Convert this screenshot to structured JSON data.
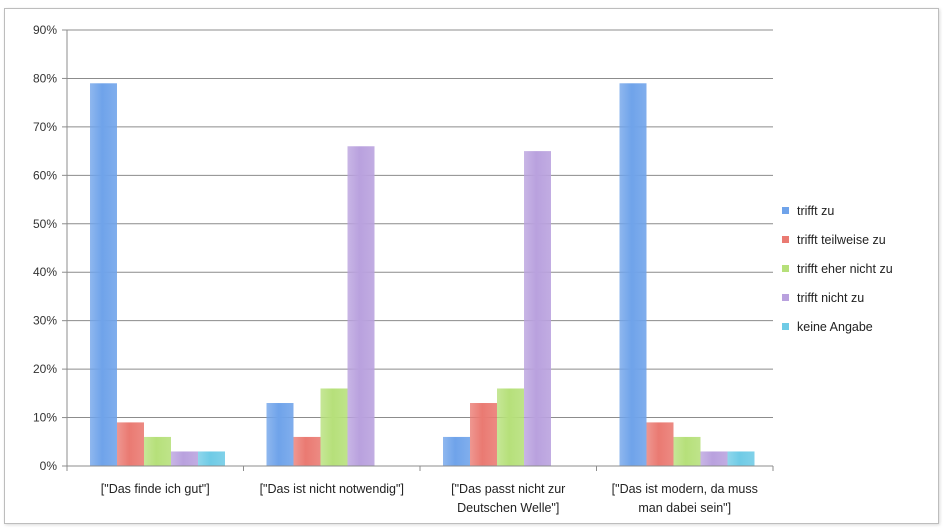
{
  "chart_data": {
    "type": "bar",
    "categories": [
      [
        "[\"Das finde ich gut\"]"
      ],
      [
        "[\"Das ist nicht notwendig\"]"
      ],
      [
        "[\"Das passt nicht zur",
        "Deutschen Welle\"]"
      ],
      [
        "[\"Das ist modern, da muss",
        "man dabei sein\"]"
      ]
    ],
    "series": [
      {
        "name": "trifft zu",
        "color": "#6fa3ea",
        "values": [
          79,
          13,
          6,
          79
        ]
      },
      {
        "name": "trifft teilweise zu",
        "color": "#ea7a72",
        "values": [
          9,
          6,
          13,
          9
        ]
      },
      {
        "name": "trifft eher nicht zu",
        "color": "#b6e07a",
        "values": [
          6,
          16,
          16,
          6
        ]
      },
      {
        "name": "trifft nicht zu",
        "color": "#b9a1de",
        "values": [
          3,
          66,
          65,
          3
        ]
      },
      {
        "name": "keine Angabe",
        "color": "#6fcbe6",
        "values": [
          3,
          0,
          0,
          3
        ]
      }
    ],
    "ylim": [
      0,
      90
    ],
    "yticks": [
      "0%",
      "10%",
      "20%",
      "30%",
      "40%",
      "50%",
      "60%",
      "70%",
      "80%",
      "90%"
    ],
    "grid": true,
    "legend": "right",
    "title": "",
    "xlabel": "",
    "ylabel": ""
  }
}
